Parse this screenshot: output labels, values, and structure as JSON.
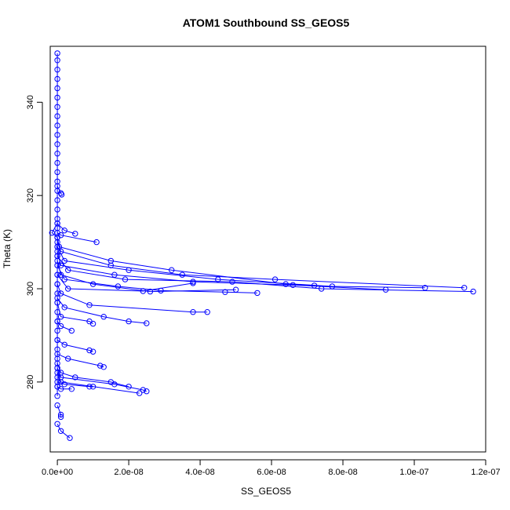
{
  "chart_data": {
    "type": "line",
    "title": "ATOM1 Southbound SS_GEOS5",
    "xlabel": "SS_GEOS5",
    "ylabel": "Theta (K)",
    "xlim": [
      -2e-09,
      1.2e-07
    ],
    "ylim": [
      265,
      352
    ],
    "x_ticks": [
      0,
      2e-08,
      4e-08,
      6e-08,
      8e-08,
      1e-07,
      1.2e-07
    ],
    "x_tick_labels": [
      "0.0e+00",
      "2.0e-08",
      "4.0e-08",
      "6.0e-08",
      "8.0e-08",
      "1.0e-07",
      "1.2e-07"
    ],
    "y_ticks": [
      280,
      300,
      320,
      340
    ],
    "y_tick_labels": [
      "280",
      "300",
      "320",
      "340"
    ],
    "grid": false,
    "legend": "none",
    "color": "#0000ff",
    "marker": "open-circle",
    "series": [
      {
        "x": [
          0,
          0,
          0,
          0,
          0,
          0,
          0,
          0,
          0,
          0,
          0,
          0,
          0,
          0,
          0,
          0,
          0,
          0,
          0,
          0,
          0,
          0,
          0,
          0,
          0,
          0,
          0,
          0,
          0,
          0,
          0,
          0,
          0,
          0,
          0,
          0,
          0,
          0
        ],
        "y": [
          350.5,
          349,
          347,
          345,
          343,
          341,
          339,
          337,
          335,
          333,
          331,
          329,
          327,
          325,
          323,
          321,
          319,
          317,
          315,
          313,
          311,
          309,
          307,
          305,
          303,
          301,
          299,
          297,
          295,
          293,
          291,
          289,
          287,
          285,
          283,
          281,
          279,
          277
        ]
      },
      {
        "x": [
          0,
          1e-09,
          1.1e-08
        ],
        "y": [
          312,
          311.5,
          310
        ]
      },
      {
        "x": [
          0,
          5e-10,
          1.5e-08,
          3.2e-08,
          6.4e-08,
          7.2e-08
        ],
        "y": [
          311,
          309,
          306,
          304,
          301,
          300.7
        ]
      },
      {
        "x": [
          0,
          1e-09,
          1.5e-08,
          3.5e-08,
          6.1e-08,
          1.14e-07
        ],
        "y": [
          310,
          308,
          305,
          303,
          302,
          300.2
        ]
      },
      {
        "x": [
          0,
          2e-09,
          2e-08,
          4.5e-08,
          7.7e-08,
          1.03e-07
        ],
        "y": [
          309,
          306,
          304,
          302,
          300.5,
          300.2
        ]
      },
      {
        "x": [
          0,
          1e-09,
          1.6e-08,
          3.8e-08,
          6.6e-08,
          9.2e-08
        ],
        "y": [
          308,
          305,
          303,
          301.5,
          300.8,
          299.8
        ]
      },
      {
        "x": [
          0,
          3e-09,
          1.9e-08,
          4.9e-08,
          7.4e-08,
          1.165e-07
        ],
        "y": [
          307,
          304,
          302,
          301.5,
          300,
          299.4
        ]
      },
      {
        "x": [
          0,
          1e-09,
          1e-08,
          2.6e-08,
          5e-08
        ],
        "y": [
          306,
          303,
          301,
          299.4,
          299.8
        ]
      },
      {
        "x": [
          0,
          2e-09,
          1.7e-08,
          2.9e-08,
          4.7e-08,
          5.6e-08
        ],
        "y": [
          305,
          302,
          300.5,
          299.6,
          299.3,
          299.1
        ]
      },
      {
        "x": [
          0,
          3e-09,
          2.4e-08,
          3.8e-08
        ],
        "y": [
          303,
          300,
          299.5,
          301.2
        ]
      },
      {
        "x": [
          0,
          1e-09,
          9e-09,
          3.8e-08,
          4.2e-08
        ],
        "y": [
          301,
          299,
          296.5,
          295,
          295
        ]
      },
      {
        "x": [
          0,
          2e-09,
          1.3e-08,
          2e-08,
          2.5e-08
        ],
        "y": [
          298,
          296,
          294,
          293,
          292.6
        ]
      },
      {
        "x": [
          0,
          1e-09,
          9e-09,
          1e-08
        ],
        "y": [
          297,
          294,
          293,
          292.5
        ]
      },
      {
        "x": [
          0,
          1e-09,
          4e-09
        ],
        "y": [
          293,
          292,
          291
        ]
      },
      {
        "x": [
          0,
          2e-09,
          9e-09,
          1e-08
        ],
        "y": [
          289,
          288,
          286.8,
          286.5
        ]
      },
      {
        "x": [
          0,
          3e-09,
          1.2e-08,
          1.3e-08
        ],
        "y": [
          286,
          285,
          283.5,
          283.2
        ]
      },
      {
        "x": [
          0,
          1e-09,
          5e-09,
          1.5e-08,
          2e-08
        ],
        "y": [
          284,
          282,
          281,
          280,
          279
        ]
      },
      {
        "x": [
          0,
          1e-09,
          1.6e-08,
          2.4e-08,
          2.5e-08
        ],
        "y": [
          283,
          281,
          279.5,
          278.3,
          278
        ]
      },
      {
        "x": [
          0,
          2e-09,
          9e-09,
          1e-08
        ],
        "y": [
          280,
          279.5,
          279,
          279
        ]
      },
      {
        "x": [
          0,
          1e-09,
          2.3e-08
        ],
        "y": [
          282,
          280,
          277.6
        ]
      },
      {
        "x": [
          0,
          1e-09,
          4e-09
        ],
        "y": [
          279,
          278.5,
          278.5
        ]
      },
      {
        "x": [
          0,
          1e-09,
          1e-09
        ],
        "y": [
          275,
          273,
          272.5
        ]
      },
      {
        "x": [
          0,
          1e-09,
          3.5e-09
        ],
        "y": [
          271,
          269.5,
          268
        ]
      },
      {
        "x": [
          0,
          -1.5e-09,
          0
        ],
        "y": [
          314,
          312,
          311
        ]
      },
      {
        "x": [
          0,
          2e-09,
          5e-09
        ],
        "y": [
          314,
          312.5,
          311.8
        ]
      },
      {
        "x": [
          0,
          1e-09,
          1.2e-09
        ],
        "y": [
          322,
          320.5,
          320.2
        ]
      }
    ]
  }
}
